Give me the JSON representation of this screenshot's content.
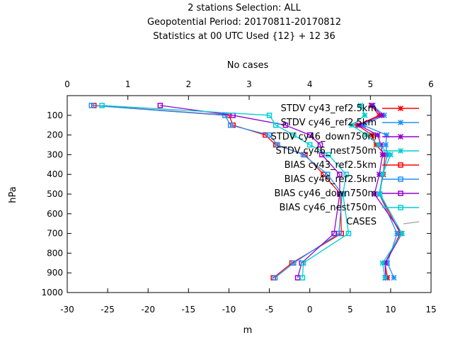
{
  "chart_data": {
    "type": "line",
    "title_lines": [
      "2 stations Selection: ALL",
      "Geopotential  Period: 20170811-20170812",
      "Statistics at 00 UTC  Used {12} + 12 36"
    ],
    "xlabel": "m",
    "ylabel": "hPa",
    "x2label": "No cases",
    "xlim": [
      -30,
      15
    ],
    "x2lim": [
      0,
      6
    ],
    "ylim": [
      1000,
      0
    ],
    "x_ticks": [
      "-30",
      "-25",
      "-20",
      "-15",
      "-10",
      "-5",
      "0",
      "5",
      "10",
      "15"
    ],
    "x2_ticks": [
      "0",
      "1",
      "2",
      "3",
      "4",
      "5",
      "6"
    ],
    "y_ticks": [
      "100",
      "200",
      "300",
      "400",
      "500",
      "600",
      "700",
      "800",
      "900",
      "1000"
    ],
    "grid": false,
    "legend_position": "top-right",
    "levels": [
      50,
      100,
      150,
      200,
      250,
      300,
      400,
      500,
      700,
      850,
      925
    ],
    "series": [
      {
        "name": "STDV cy43_ref2.5km",
        "color": "#ff0000",
        "marker": "x",
        "values": [
          7.6,
          8.6,
          5.9,
          7.7,
          8.2,
          9.3,
          9.1,
          8.6,
          11.2,
          9.3,
          9.6
        ]
      },
      {
        "name": "STDV cy46_ref2.5km",
        "color": "#1e90ff",
        "marker": "x",
        "values": [
          7.8,
          9.2,
          6.6,
          9.5,
          9.4,
          9.6,
          9.0,
          8.6,
          10.8,
          9.6,
          10.4
        ]
      },
      {
        "name": "STDV cy46_down750m",
        "color": "#9400d3",
        "marker": "x",
        "values": [
          7.7,
          8.9,
          6.1,
          8.4,
          8.8,
          9.0,
          8.6,
          8.0,
          11.4,
          9.3,
          9.4
        ]
      },
      {
        "name": "STDV cy46_nest750m",
        "color": "#00ced1",
        "marker": "x",
        "values": [
          6.3,
          6.8,
          5.2,
          7.0,
          8.5,
          10.0,
          9.0,
          8.7,
          11.4,
          9.0,
          9.3
        ]
      },
      {
        "name": "BIAS cy43_ref2.5km",
        "color": "#ff0000",
        "marker": "box",
        "values": [
          -26.7,
          -10.0,
          -9.5,
          -5.5,
          -4.2,
          -0.6,
          1.7,
          3.8,
          3.9,
          -2.2,
          -4.5
        ]
      },
      {
        "name": "BIAS cy46_ref2.5km",
        "color": "#1e90ff",
        "marker": "box",
        "values": [
          -27.0,
          -10.5,
          -9.8,
          -5.0,
          -4.0,
          -0.8,
          2.2,
          4.0,
          3.6,
          -2.0,
          -4.3
        ]
      },
      {
        "name": "BIAS cy46_down750m",
        "color": "#9400d3",
        "marker": "box",
        "values": [
          -18.5,
          -9.5,
          -3.0,
          0.0,
          1.3,
          1.5,
          3.7,
          3.7,
          3.0,
          -1.0,
          -1.5
        ]
      },
      {
        "name": "BIAS cy46_nest750m",
        "color": "#00ced1",
        "marker": "box",
        "values": [
          -25.7,
          -5.0,
          -4.2,
          -2.0,
          0.0,
          2.3,
          4.5,
          4.1,
          4.8,
          -0.8,
          -0.9
        ]
      },
      {
        "name": "CASES",
        "color": "#a0a0a0",
        "marker": "none",
        "values": []
      }
    ]
  }
}
